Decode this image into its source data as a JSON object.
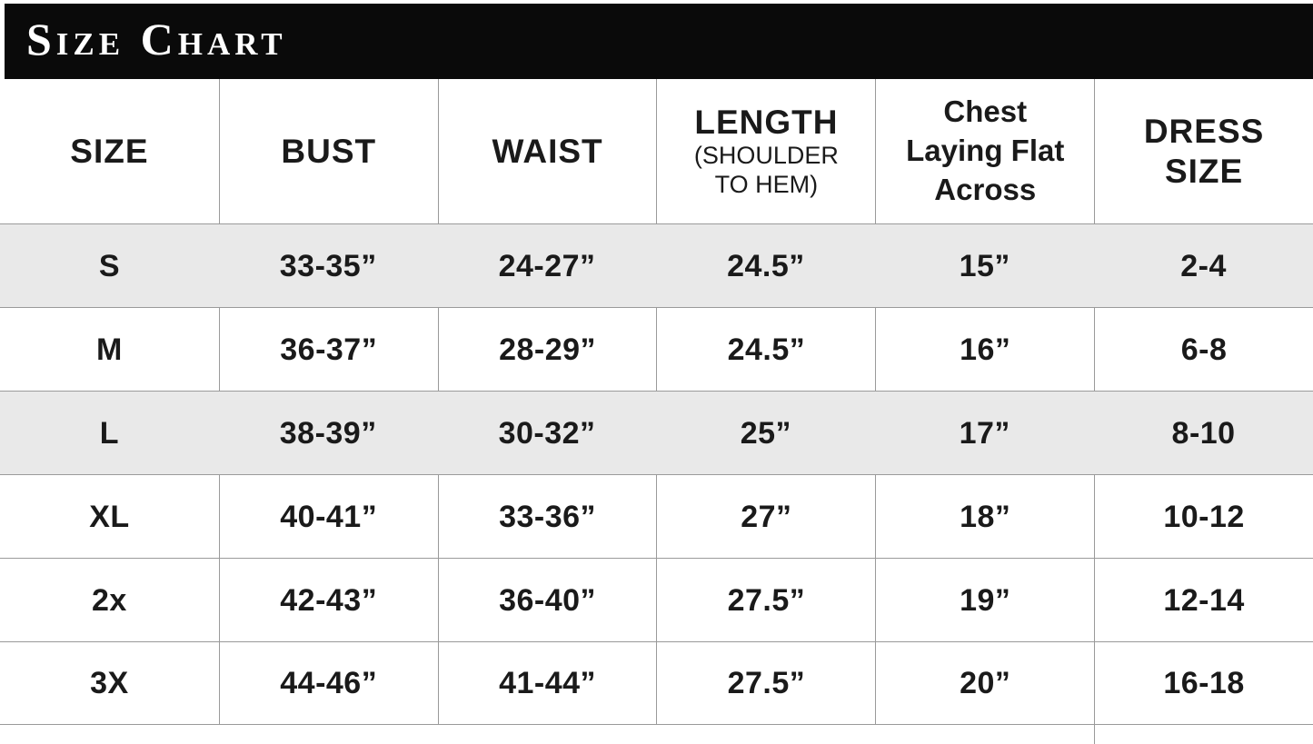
{
  "header": {
    "title": "Size Chart"
  },
  "chart_data": {
    "type": "table",
    "title": "SIZE CHART",
    "columns": [
      "SIZE",
      "BUST",
      "WAIST",
      "LENGTH (SHOULDER TO HEM)",
      "Chest Laying Flat Across",
      "DRESS SIZE"
    ],
    "rows": [
      [
        "S",
        "33-35”",
        "24-27”",
        "24.5”",
        "15”",
        "2-4"
      ],
      [
        "M",
        "36-37”",
        "28-29”",
        "24.5”",
        "16”",
        "6-8"
      ],
      [
        "L",
        "38-39”",
        "30-32”",
        "25”",
        "17”",
        "8-10"
      ],
      [
        "XL",
        "40-41”",
        "33-36”",
        "27”",
        "18”",
        "10-12"
      ],
      [
        "2x",
        "42-43”",
        "36-40”",
        "27.5”",
        "19”",
        "12-14"
      ],
      [
        "3X",
        "44-46”",
        "41-44”",
        "27.5”",
        "20”",
        "16-18"
      ]
    ],
    "shaded_rows": [
      "S",
      "L"
    ]
  },
  "header_cells": {
    "size": "SIZE",
    "bust": "BUST",
    "waist": "WAIST",
    "length_main": "LENGTH",
    "length_sub": [
      "(SHOULDER",
      "TO HEM)"
    ],
    "chest_lines": [
      "Chest",
      "Laying Flat",
      "Across"
    ],
    "dress_lines": [
      "DRESS",
      "SIZE"
    ]
  },
  "colors": {
    "header_bar_bg": "#0a0a0a",
    "header_bar_text": "#ffffff",
    "row_shaded_bg": "#e9e9e9",
    "grid_line": "#9a9a9a",
    "table_text": "#1a1a1a"
  }
}
